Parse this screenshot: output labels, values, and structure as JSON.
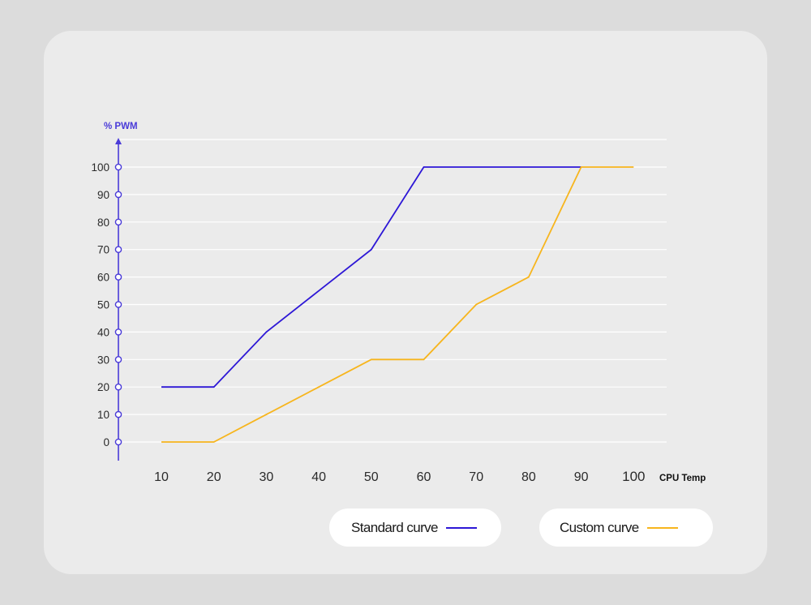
{
  "colors": {
    "standard": "#2d17d6",
    "custom": "#f7b51d",
    "axis": "#4a3bd8",
    "grid": "#ffffff"
  },
  "chart_data": {
    "type": "line",
    "ylabel": "% PWM",
    "xlabel": "CPU Temp",
    "x_ticks": [
      "10",
      "20",
      "30",
      "40",
      "50",
      "60",
      "70",
      "80",
      "90",
      "100"
    ],
    "y_ticks": [
      "100",
      "90",
      "80",
      "70",
      "60",
      "50",
      "40",
      "30",
      "20",
      "10",
      "0"
    ],
    "xlim": [
      10,
      100
    ],
    "ylim": [
      0,
      100
    ],
    "grid": true,
    "series": [
      {
        "name": "Standard curve",
        "color": "#2d17d6",
        "points": [
          [
            10,
            20
          ],
          [
            20,
            20
          ],
          [
            30,
            40
          ],
          [
            40,
            55
          ],
          [
            50,
            70
          ],
          [
            60,
            100
          ],
          [
            90,
            100
          ]
        ]
      },
      {
        "name": "Custom curve",
        "color": "#f7b51d",
        "points": [
          [
            10,
            0
          ],
          [
            20,
            0
          ],
          [
            30,
            10
          ],
          [
            40,
            20
          ],
          [
            50,
            30
          ],
          [
            60,
            30
          ],
          [
            70,
            50
          ],
          [
            80,
            60
          ],
          [
            90,
            100
          ],
          [
            100,
            100
          ]
        ]
      }
    ]
  },
  "legend": {
    "standard_label": "Standard curve",
    "custom_label": "Custom curve"
  }
}
